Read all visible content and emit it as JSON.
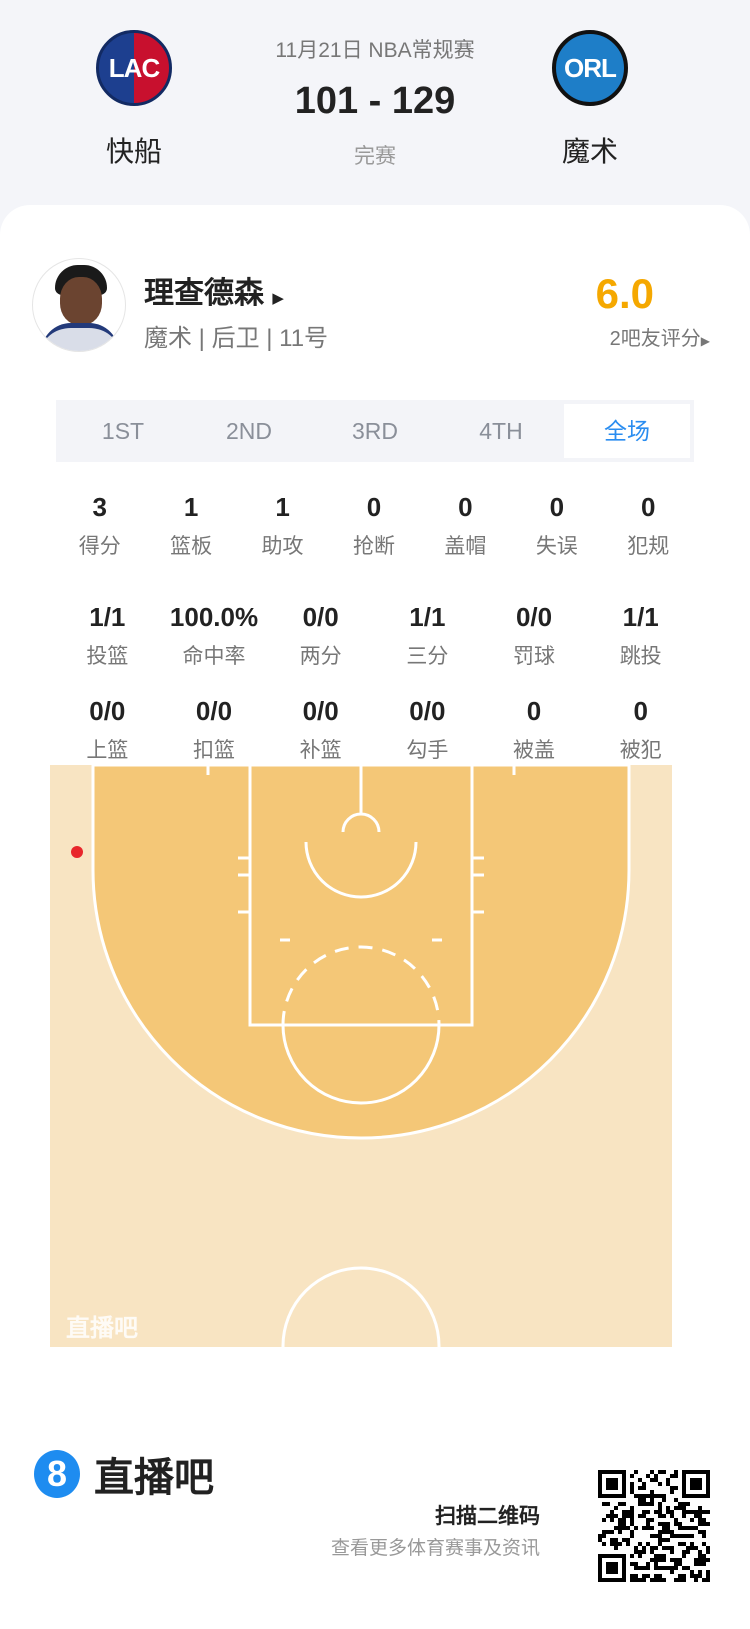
{
  "header": {
    "date_league": "11月21日 NBA常规赛",
    "score": "101 - 129",
    "status": "完赛",
    "home": {
      "abbr": "LAC",
      "name": "快船"
    },
    "away": {
      "abbr": "ORL",
      "name": "魔术"
    }
  },
  "player": {
    "name": "理查德森",
    "info": "魔术 | 后卫 | 11号",
    "rating": "6.0",
    "rating_label": "2吧友评分",
    "rating_color": "#f5a800"
  },
  "tabs": [
    "1ST",
    "2ND",
    "3RD",
    "4TH",
    "全场"
  ],
  "active_tab": "全场",
  "stats_row1": [
    {
      "v": "3",
      "l": "得分"
    },
    {
      "v": "1",
      "l": "篮板"
    },
    {
      "v": "1",
      "l": "助攻"
    },
    {
      "v": "0",
      "l": "抢断"
    },
    {
      "v": "0",
      "l": "盖帽"
    },
    {
      "v": "0",
      "l": "失误"
    },
    {
      "v": "0",
      "l": "犯规"
    }
  ],
  "stats_row2": [
    {
      "v": "1/1",
      "l": "投篮"
    },
    {
      "v": "100.0%",
      "l": "命中率"
    },
    {
      "v": "0/0",
      "l": "两分"
    },
    {
      "v": "1/1",
      "l": "三分"
    },
    {
      "v": "0/0",
      "l": "罚球"
    },
    {
      "v": "1/1",
      "l": "跳投"
    }
  ],
  "stats_row3": [
    {
      "v": "0/0",
      "l": "上篮"
    },
    {
      "v": "0/0",
      "l": "扣篮"
    },
    {
      "v": "0/0",
      "l": "补篮"
    },
    {
      "v": "0/0",
      "l": "勾手"
    },
    {
      "v": "0",
      "l": "被盖"
    },
    {
      "v": "0",
      "l": "被犯"
    }
  ],
  "court": {
    "watermark": "直播吧",
    "shots": [
      {
        "made": true,
        "color": "#e8262b"
      }
    ]
  },
  "footer": {
    "brand": "直播吧",
    "scan": "扫描二维码",
    "sub": "查看更多体育赛事及资讯",
    "accent": "#1e8cf0"
  }
}
